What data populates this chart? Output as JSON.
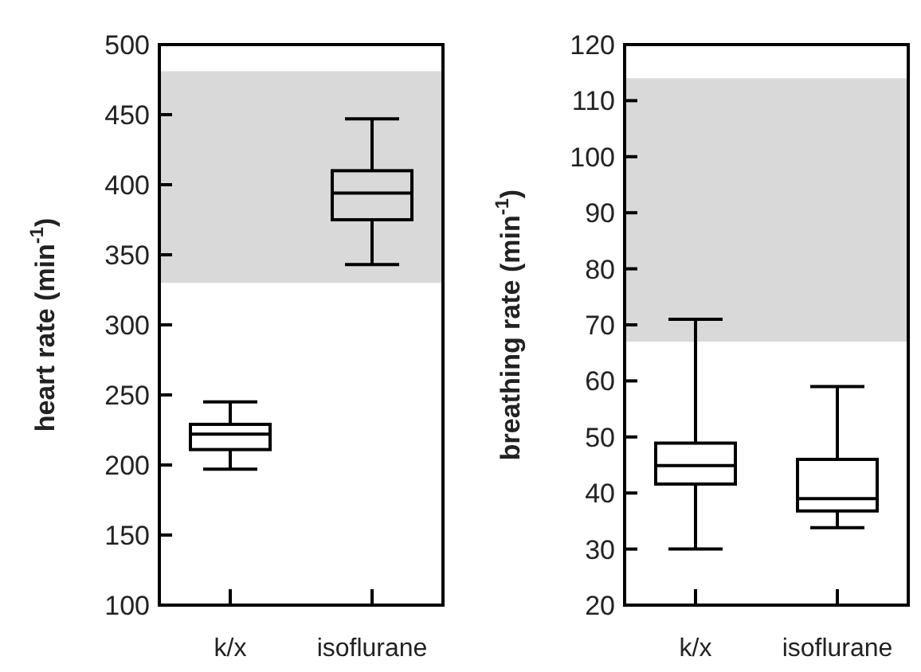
{
  "chart_data": [
    {
      "type": "box",
      "ylabel": "heart rate (min$^{-1}$)",
      "categories": [
        "k/x",
        "isoflurane"
      ],
      "ylim": [
        100,
        500
      ],
      "yticks": [
        100,
        150,
        200,
        250,
        300,
        350,
        400,
        450,
        500
      ],
      "boxes": [
        {
          "low": 197,
          "q1": 211,
          "median": 222,
          "q3": 229,
          "high": 245
        },
        {
          "low": 343,
          "q1": 375,
          "median": 394,
          "q3": 410,
          "high": 447
        }
      ],
      "bands": [
        {
          "axis": "y",
          "from": 330,
          "to": 481,
          "color": "#d9d9d9"
        }
      ]
    },
    {
      "type": "box",
      "ylabel": "breathing rate (min$^{-1}$)",
      "categories": [
        "k/x",
        "isoflurane"
      ],
      "ylim": [
        20,
        120
      ],
      "yticks": [
        20,
        30,
        40,
        50,
        60,
        70,
        80,
        90,
        100,
        110,
        120
      ],
      "boxes": [
        {
          "low": 30,
          "q1": 41.6,
          "median": 44.9,
          "q3": 48.9,
          "high": 71
        },
        {
          "low": 33.8,
          "q1": 36.8,
          "median": 39,
          "q3": 46,
          "high": 59
        }
      ],
      "bands": [
        {
          "axis": "y",
          "from": 67,
          "to": 114,
          "color": "#d9d9d9"
        }
      ]
    }
  ]
}
